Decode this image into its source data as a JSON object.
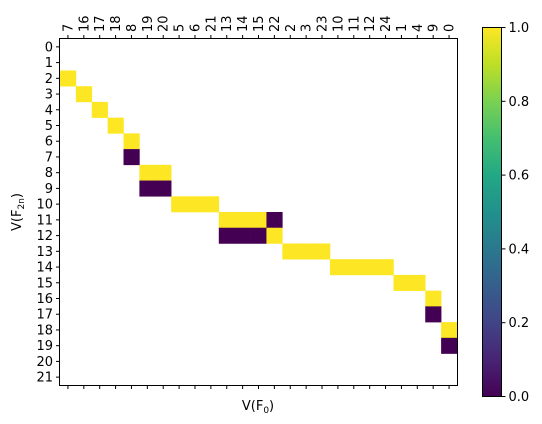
{
  "chart_data": {
    "type": "heatmap",
    "xlabel": "V(F",
    "xlabel_sub": "0",
    "xlabel_close": ")",
    "ylabel": "V(F",
    "ylabel_sub": "2n",
    "ylabel_close": ")",
    "x_categories": [
      "7",
      "16",
      "17",
      "18",
      "8",
      "19",
      "20",
      "5",
      "6",
      "21",
      "13",
      "14",
      "15",
      "22",
      "2",
      "3",
      "23",
      "10",
      "11",
      "12",
      "24",
      "1",
      "4",
      "9",
      "0"
    ],
    "y_categories": [
      "0",
      "1",
      "2",
      "3",
      "4",
      "5",
      "6",
      "7",
      "8",
      "9",
      "10",
      "11",
      "12",
      "13",
      "14",
      "15",
      "16",
      "17",
      "18",
      "19",
      "20",
      "21"
    ],
    "x_tick_position": "top",
    "colormap": "viridis",
    "color_range": [
      0,
      1
    ],
    "colorbar_ticks": [
      "0.0",
      "0.2",
      "0.4",
      "0.6",
      "0.8",
      "1.0"
    ],
    "colorbar_tick_values": [
      0,
      0.2,
      0.4,
      0.6,
      0.8,
      1.0
    ],
    "background_value": null,
    "cells": [
      {
        "row": 2,
        "col": 0,
        "value": 1
      },
      {
        "row": 3,
        "col": 1,
        "value": 1
      },
      {
        "row": 4,
        "col": 2,
        "value": 1
      },
      {
        "row": 5,
        "col": 3,
        "value": 1
      },
      {
        "row": 6,
        "col": 4,
        "value": 1
      },
      {
        "row": 7,
        "col": 4,
        "value": 0
      },
      {
        "row": 8,
        "col": 5,
        "value": 1
      },
      {
        "row": 8,
        "col": 6,
        "value": 1
      },
      {
        "row": 9,
        "col": 5,
        "value": 0
      },
      {
        "row": 9,
        "col": 6,
        "value": 0
      },
      {
        "row": 10,
        "col": 7,
        "value": 1
      },
      {
        "row": 10,
        "col": 8,
        "value": 1
      },
      {
        "row": 10,
        "col": 9,
        "value": 1
      },
      {
        "row": 11,
        "col": 10,
        "value": 1
      },
      {
        "row": 11,
        "col": 11,
        "value": 1
      },
      {
        "row": 11,
        "col": 12,
        "value": 1
      },
      {
        "row": 11,
        "col": 13,
        "value": 0
      },
      {
        "row": 12,
        "col": 10,
        "value": 0
      },
      {
        "row": 12,
        "col": 11,
        "value": 0
      },
      {
        "row": 12,
        "col": 12,
        "value": 0
      },
      {
        "row": 12,
        "col": 13,
        "value": 1
      },
      {
        "row": 13,
        "col": 14,
        "value": 1
      },
      {
        "row": 13,
        "col": 15,
        "value": 1
      },
      {
        "row": 13,
        "col": 16,
        "value": 1
      },
      {
        "row": 14,
        "col": 17,
        "value": 1
      },
      {
        "row": 14,
        "col": 18,
        "value": 1
      },
      {
        "row": 14,
        "col": 19,
        "value": 1
      },
      {
        "row": 14,
        "col": 20,
        "value": 1
      },
      {
        "row": 15,
        "col": 21,
        "value": 1
      },
      {
        "row": 15,
        "col": 22,
        "value": 1
      },
      {
        "row": 16,
        "col": 23,
        "value": 1
      },
      {
        "row": 17,
        "col": 23,
        "value": 0
      },
      {
        "row": 18,
        "col": 24,
        "value": 1
      },
      {
        "row": 19,
        "col": 24,
        "value": 0
      }
    ],
    "colors": {
      "high": "#fde725",
      "low": "#440154"
    }
  }
}
